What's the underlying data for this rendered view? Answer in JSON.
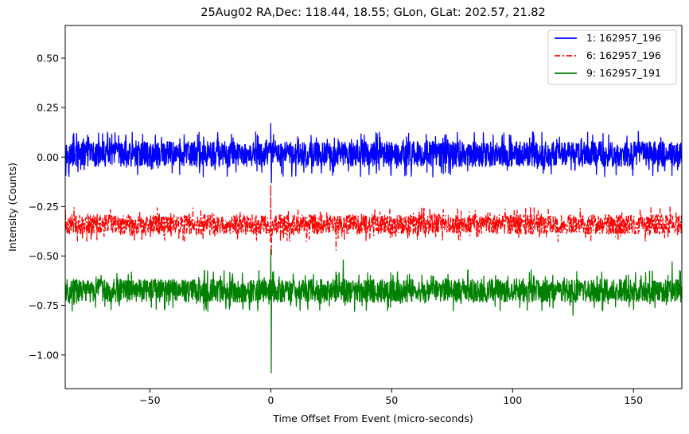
{
  "chart_data": {
    "type": "line",
    "title": "25Aug02 RA,Dec:  118.44,  18.55; GLon, GLat:  202.57,  21.82",
    "xlabel": "Time Offset From Event (micro-seconds)",
    "ylabel": "Intensity (Counts)",
    "xlim": [
      -85,
      170
    ],
    "ylim": [
      -1.17,
      0.665
    ],
    "x_ticks": [
      -50,
      0,
      50,
      100,
      150
    ],
    "x_tick_labels": [
      "−50",
      "0",
      "50",
      "100",
      "150"
    ],
    "y_ticks": [
      0.5,
      0.25,
      0.0,
      -0.25,
      -0.5,
      -0.75,
      -1.0
    ],
    "y_tick_labels": [
      "0.50",
      "0.25",
      "0.00",
      "−0.25",
      "−0.50",
      "−0.75",
      "−1.00"
    ],
    "legend_position": "top-right",
    "series": [
      {
        "name": "1: 162957_196",
        "color": "#0000ff",
        "linestyle": "solid",
        "baseline": 0.0,
        "noise_band": [
          -0.1,
          0.13
        ],
        "notable_points": [
          {
            "x": 0.0,
            "y": 0.17
          },
          {
            "x": 0.3,
            "y": -0.13
          },
          {
            "x": 57.0,
            "y": 0.12
          },
          {
            "x": 67.0,
            "y": -0.1
          },
          {
            "x": 152.0,
            "y": 0.13
          }
        ]
      },
      {
        "name": "6: 162957_196",
        "color": "#ff0000",
        "linestyle": "dashdot",
        "baseline": -0.33,
        "noise_band": [
          -0.43,
          -0.25
        ],
        "notable_points": [
          {
            "x": 0.0,
            "y": -0.14
          },
          {
            "x": 0.3,
            "y": -0.5
          },
          {
            "x": 27.0,
            "y": -0.47
          },
          {
            "x": 161.0,
            "y": -0.26
          }
        ]
      },
      {
        "name": "9: 162957_191",
        "color": "#008000",
        "linestyle": "solid",
        "baseline": -0.67,
        "noise_band": [
          -0.78,
          -0.57
        ],
        "notable_points": [
          {
            "x": 0.0,
            "y": -0.47
          },
          {
            "x": 0.2,
            "y": -1.09
          },
          {
            "x": 30.0,
            "y": -0.52
          },
          {
            "x": 125.0,
            "y": -0.8
          },
          {
            "x": 166.0,
            "y": -0.53
          }
        ]
      }
    ]
  }
}
